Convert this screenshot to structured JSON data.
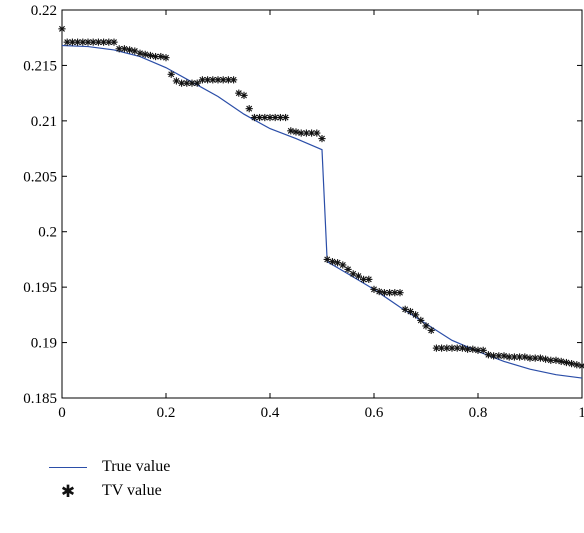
{
  "chart_data": {
    "type": "line",
    "title": "",
    "xlabel": "",
    "ylabel": "",
    "xlim": [
      0,
      1
    ],
    "ylim": [
      0.185,
      0.22
    ],
    "x_ticks": [
      0,
      0.2,
      0.4,
      0.6,
      0.8,
      1
    ],
    "x_tick_labels": [
      "0",
      "0.2",
      "0.4",
      "0.6",
      "0.8",
      "1"
    ],
    "y_ticks": [
      0.185,
      0.19,
      0.195,
      0.2,
      0.205,
      0.21,
      0.215,
      0.22
    ],
    "y_tick_labels": [
      "0.185",
      "0.19",
      "0.195",
      "0.2",
      "0.205",
      "0.21",
      "0.215",
      "0.22"
    ],
    "grid": false,
    "legend_position": "bottom-left, below plot",
    "colors": {
      "true_line": "#2b4ea8",
      "tv_marker": "#111111",
      "axes": "#000000"
    },
    "series": [
      {
        "name": "True value",
        "kind": "line",
        "x": [
          0,
          0.05,
          0.1,
          0.15,
          0.2,
          0.25,
          0.3,
          0.35,
          0.4,
          0.45,
          0.5,
          0.51,
          0.55,
          0.6,
          0.65,
          0.7,
          0.75,
          0.8,
          0.85,
          0.9,
          0.95,
          1
        ],
        "y": [
          0.2168,
          0.2167,
          0.2164,
          0.2158,
          0.2148,
          0.2135,
          0.2122,
          0.2106,
          0.2093,
          0.2084,
          0.2074,
          0.1973,
          0.1962,
          0.1948,
          0.1932,
          0.1917,
          0.1902,
          0.1892,
          0.1883,
          0.1876,
          0.1871,
          0.1868
        ]
      },
      {
        "name": "TV value",
        "kind": "markers",
        "marker": "*",
        "x": [
          0,
          0.01,
          0.02,
          0.03,
          0.04,
          0.05,
          0.06,
          0.07,
          0.08,
          0.09,
          0.1,
          0.11,
          0.12,
          0.13,
          0.14,
          0.15,
          0.16,
          0.17,
          0.18,
          0.19,
          0.2,
          0.21,
          0.22,
          0.23,
          0.24,
          0.25,
          0.26,
          0.27,
          0.28,
          0.29,
          0.3,
          0.31,
          0.32,
          0.33,
          0.34,
          0.35,
          0.36,
          0.37,
          0.38,
          0.39,
          0.4,
          0.41,
          0.42,
          0.43,
          0.44,
          0.45,
          0.46,
          0.47,
          0.48,
          0.49,
          0.5,
          0.51,
          0.52,
          0.53,
          0.54,
          0.55,
          0.56,
          0.57,
          0.58,
          0.59,
          0.6,
          0.61,
          0.62,
          0.63,
          0.64,
          0.65,
          0.66,
          0.67,
          0.68,
          0.69,
          0.7,
          0.71,
          0.72,
          0.73,
          0.74,
          0.75,
          0.76,
          0.77,
          0.78,
          0.79,
          0.8,
          0.81,
          0.82,
          0.83,
          0.84,
          0.85,
          0.86,
          0.87,
          0.88,
          0.89,
          0.9,
          0.91,
          0.92,
          0.93,
          0.94,
          0.95,
          0.96,
          0.97,
          0.98,
          0.99,
          1.0
        ],
        "y": [
          0.2183,
          0.2171,
          0.2171,
          0.2171,
          0.2171,
          0.2171,
          0.2171,
          0.2171,
          0.2171,
          0.2171,
          0.2171,
          0.2165,
          0.2165,
          0.2164,
          0.2163,
          0.2161,
          0.216,
          0.2159,
          0.2158,
          0.2158,
          0.2157,
          0.2142,
          0.2136,
          0.2134,
          0.2134,
          0.2134,
          0.2134,
          0.2137,
          0.2137,
          0.2137,
          0.2137,
          0.2137,
          0.2137,
          0.2137,
          0.2125,
          0.2123,
          0.2111,
          0.2103,
          0.2103,
          0.2103,
          0.2103,
          0.2103,
          0.2103,
          0.2103,
          0.2091,
          0.209,
          0.2089,
          0.2089,
          0.2089,
          0.2089,
          0.2084,
          0.1975,
          0.1973,
          0.1972,
          0.197,
          0.1966,
          0.1962,
          0.196,
          0.1957,
          0.1957,
          0.1948,
          0.1946,
          0.1945,
          0.1945,
          0.1945,
          0.1945,
          0.193,
          0.1928,
          0.1925,
          0.192,
          0.1915,
          0.1911,
          0.1895,
          0.1895,
          0.1895,
          0.1895,
          0.1895,
          0.1895,
          0.1894,
          0.1894,
          0.1893,
          0.1893,
          0.1889,
          0.1888,
          0.1888,
          0.1888,
          0.1887,
          0.1887,
          0.1887,
          0.1887,
          0.1886,
          0.1886,
          0.1886,
          0.1885,
          0.1884,
          0.1884,
          0.1883,
          0.1882,
          0.1881,
          0.188,
          0.1879
        ]
      }
    ]
  }
}
